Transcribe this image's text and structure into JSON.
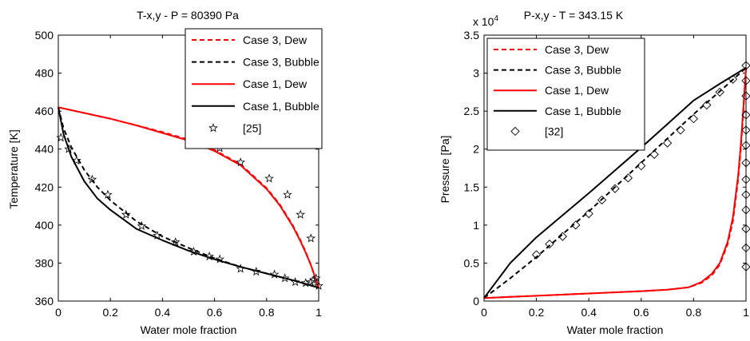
{
  "chart_data": [
    {
      "type": "line",
      "title": "T-x,y - P = 80390 Pa",
      "xlabel": "Water mole fraction",
      "ylabel": "Temperature [K]",
      "xlim": [
        0,
        1
      ],
      "ylim": [
        360,
        500
      ],
      "xticks": [
        0,
        0.2,
        0.4,
        0.6,
        0.8,
        1
      ],
      "yticks": [
        360,
        380,
        400,
        420,
        440,
        460,
        480,
        500
      ],
      "xtick_labels": [
        "0",
        "0.2",
        "0.4",
        "0.6",
        "0.8",
        "1"
      ],
      "ytick_labels": [
        "360",
        "380",
        "400",
        "420",
        "440",
        "460",
        "480",
        "500"
      ],
      "legend_position": "top-right",
      "grid": false,
      "series": [
        {
          "name": "Case 3, Dew",
          "color": "#ff0000",
          "dash": true,
          "marker": "none",
          "x": [
            0,
            0.1,
            0.2,
            0.3,
            0.4,
            0.5,
            0.6,
            0.7,
            0.8,
            0.85,
            0.9,
            0.93,
            0.95,
            0.97,
            0.98,
            0.99,
            1.0
          ],
          "y": [
            462,
            459,
            456,
            452.5,
            449,
            445,
            439.5,
            432,
            419.5,
            411,
            400,
            392,
            386,
            379,
            375,
            371,
            367
          ]
        },
        {
          "name": "Case 3, Bubble",
          "color": "#000000",
          "dash": true,
          "marker": "none",
          "x": [
            0,
            0.02,
            0.05,
            0.1,
            0.15,
            0.2,
            0.3,
            0.4,
            0.5,
            0.6,
            0.7,
            0.8,
            0.9,
            0.95,
            1.0
          ],
          "y": [
            462,
            451,
            441,
            429,
            420,
            413,
            402,
            394,
            388,
            382.5,
            378,
            374.5,
            371,
            369,
            367
          ]
        },
        {
          "name": "Case 1, Dew",
          "color": "#ff0000",
          "dash": false,
          "marker": "none",
          "x": [
            0,
            0.1,
            0.2,
            0.3,
            0.4,
            0.5,
            0.6,
            0.7,
            0.8,
            0.85,
            0.9,
            0.93,
            0.95,
            0.97,
            0.98,
            0.99,
            1.0
          ],
          "y": [
            462,
            459,
            456,
            452.5,
            448.5,
            444.5,
            439,
            431.5,
            419,
            410.5,
            399.5,
            391.5,
            385.5,
            379,
            375,
            371,
            367
          ]
        },
        {
          "name": "Case 1, Bubble",
          "color": "#000000",
          "dash": false,
          "marker": "none",
          "x": [
            0,
            0.02,
            0.05,
            0.1,
            0.15,
            0.2,
            0.3,
            0.4,
            0.5,
            0.6,
            0.7,
            0.8,
            0.9,
            0.95,
            1.0
          ],
          "y": [
            462,
            448,
            436,
            423,
            414,
            408,
            398,
            392,
            386.5,
            382,
            378,
            374.5,
            371,
            369,
            367
          ]
        },
        {
          "name": "[25]",
          "color": "#000000",
          "marker": "star",
          "line": false,
          "x": [
            0.01,
            0.04,
            0.07,
            0.13,
            0.19,
            0.26,
            0.32,
            0.38,
            0.45,
            0.52,
            0.58,
            0.62,
            0.7,
            0.76,
            0.83,
            0.87,
            0.91,
            0.95,
            0.97,
            0.98,
            0.99,
            1.0,
            0.97,
            0.93,
            0.88,
            0.81,
            0.7,
            0.62,
            0.52
          ],
          "y": [
            446,
            440,
            434,
            424,
            416,
            405.5,
            399.5,
            394.5,
            391,
            386,
            383.5,
            382,
            377,
            375.5,
            374,
            372,
            370,
            369.5,
            370,
            371,
            372,
            368,
            393,
            405.5,
            416,
            424.5,
            433,
            440.5,
            446
          ]
        }
      ]
    },
    {
      "type": "line",
      "title": "P-x,y - T = 343.15 K",
      "xlabel": "Water mole fraction",
      "ylabel": "Pressure [Pa]",
      "y_multiplier_label": "x 10",
      "y_multiplier_exp": "4",
      "xlim": [
        0,
        1
      ],
      "ylim": [
        0,
        3.5
      ],
      "xticks": [
        0,
        0.2,
        0.4,
        0.6,
        0.8,
        1
      ],
      "yticks": [
        0,
        0.5,
        1,
        1.5,
        2,
        2.5,
        3,
        3.5
      ],
      "xtick_labels": [
        "0",
        "0.2",
        "0.4",
        "0.6",
        "0.8",
        "1"
      ],
      "ytick_labels": [
        "0",
        "0.5",
        "1",
        "1.5",
        "2",
        "2.5",
        "3",
        "3.5"
      ],
      "legend_position": "top-left",
      "grid": false,
      "series": [
        {
          "name": "Case 3, Dew",
          "color": "#ff0000",
          "dash": true,
          "marker": "none",
          "x": [
            0,
            0.2,
            0.4,
            0.6,
            0.7,
            0.78,
            0.83,
            0.87,
            0.9,
            0.93,
            0.95,
            0.97,
            0.98,
            0.99,
            1.0
          ],
          "y": [
            0.04,
            0.07,
            0.1,
            0.13,
            0.15,
            0.18,
            0.24,
            0.34,
            0.48,
            0.75,
            1.05,
            1.6,
            2.0,
            2.5,
            3.07
          ]
        },
        {
          "name": "Case 3, Bubble",
          "color": "#000000",
          "dash": true,
          "marker": "none",
          "x": [
            0,
            0.1,
            0.2,
            0.3,
            0.4,
            0.5,
            0.6,
            0.7,
            0.8,
            0.9,
            1.0
          ],
          "y": [
            0.04,
            0.3,
            0.58,
            0.88,
            1.18,
            1.5,
            1.82,
            2.14,
            2.46,
            2.76,
            3.07
          ]
        },
        {
          "name": "Case 1, Dew",
          "color": "#ff0000",
          "dash": false,
          "marker": "none",
          "x": [
            0,
            0.2,
            0.4,
            0.6,
            0.7,
            0.78,
            0.83,
            0.87,
            0.9,
            0.93,
            0.95,
            0.97,
            0.98,
            0.99,
            1.0
          ],
          "y": [
            0.04,
            0.07,
            0.1,
            0.13,
            0.15,
            0.18,
            0.25,
            0.36,
            0.5,
            0.78,
            1.1,
            1.65,
            2.05,
            2.55,
            3.07
          ]
        },
        {
          "name": "Case 1, Bubble",
          "color": "#000000",
          "dash": false,
          "marker": "none",
          "x": [
            0,
            0.1,
            0.2,
            0.3,
            0.4,
            0.5,
            0.6,
            0.7,
            0.8,
            0.9,
            1.0
          ],
          "y": [
            0.04,
            0.5,
            0.84,
            1.13,
            1.42,
            1.72,
            2.02,
            2.33,
            2.64,
            2.86,
            3.07
          ]
        },
        {
          "name": "[32]",
          "color": "#000000",
          "marker": "diamond",
          "line": false,
          "x": [
            0.2,
            0.25,
            0.3,
            0.35,
            0.4,
            0.45,
            0.5,
            0.55,
            0.6,
            0.65,
            0.7,
            0.75,
            0.8,
            0.85,
            0.9,
            0.95,
            1.0,
            1.0,
            1.0,
            1.0,
            1.0,
            1.0,
            1.0,
            1.0,
            1.0,
            1.0,
            1.0,
            1.0,
            1.0
          ],
          "y": [
            0.61,
            0.75,
            0.85,
            1.0,
            1.15,
            1.33,
            1.48,
            1.62,
            1.78,
            1.93,
            2.08,
            2.25,
            2.4,
            2.58,
            2.75,
            2.92,
            3.1,
            2.9,
            2.7,
            2.45,
            2.25,
            2.05,
            1.82,
            1.6,
            1.4,
            1.2,
            0.95,
            0.7,
            0.45
          ]
        }
      ]
    }
  ]
}
